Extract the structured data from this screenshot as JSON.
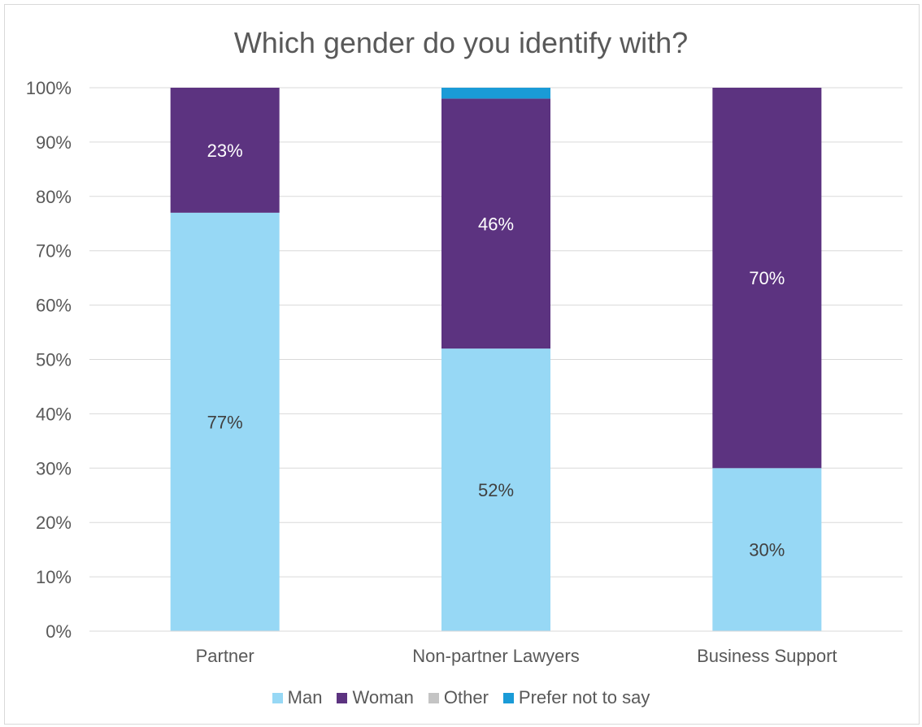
{
  "chart_data": {
    "type": "bar",
    "stacked": true,
    "title": "Which gender do you identify with?",
    "categories": [
      "Partner",
      "Non-partner Lawyers",
      "Business Support"
    ],
    "series": [
      {
        "name": "Man",
        "values": [
          77,
          52,
          30
        ],
        "color": "#97d8f5",
        "labels": [
          "77%",
          "52%",
          "30%"
        ]
      },
      {
        "name": "Woman",
        "values": [
          23,
          46,
          70
        ],
        "color": "#5c3380",
        "labels": [
          "23%",
          "46%",
          "70%"
        ]
      },
      {
        "name": "Other",
        "values": [
          0,
          0,
          0
        ],
        "color": "#c4c4c4",
        "labels": [
          "",
          "",
          ""
        ]
      },
      {
        "name": "Prefer not to say",
        "values": [
          0,
          2,
          0
        ],
        "color": "#1a9bd7",
        "labels": [
          "",
          "",
          ""
        ]
      }
    ],
    "ylim": [
      0,
      100
    ],
    "yticks": [
      0,
      10,
      20,
      30,
      40,
      50,
      60,
      70,
      80,
      90,
      100
    ],
    "ytick_labels": [
      "0%",
      "10%",
      "20%",
      "30%",
      "40%",
      "50%",
      "60%",
      "70%",
      "80%",
      "90%",
      "100%"
    ],
    "grid": true,
    "legend_position": "bottom"
  }
}
